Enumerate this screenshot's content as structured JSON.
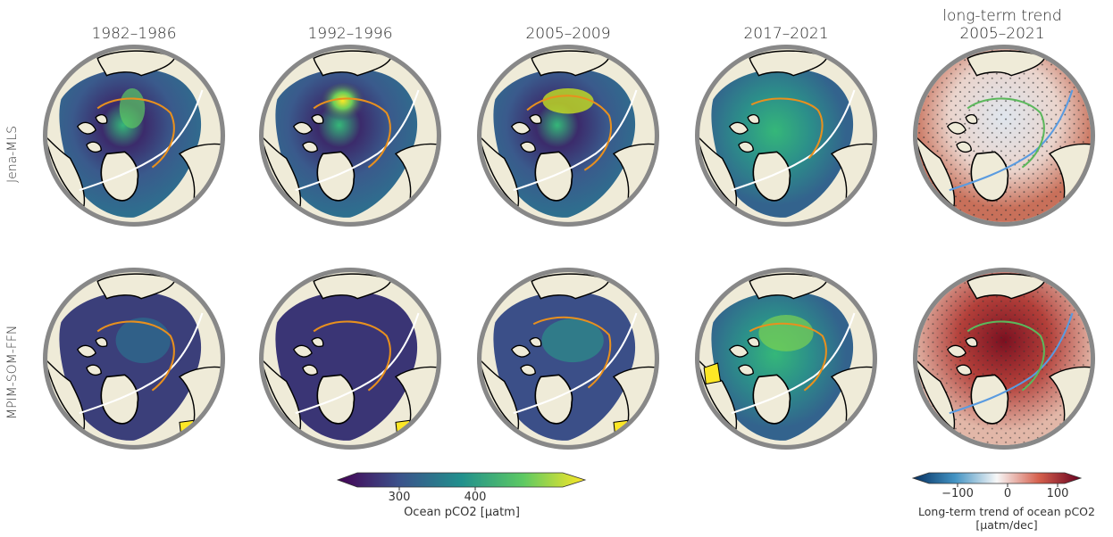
{
  "columns": [
    {
      "title": "1982–1986"
    },
    {
      "title": "1992–1996"
    },
    {
      "title": "2005–2009"
    },
    {
      "title": "2017–2021"
    },
    {
      "title_line1": "long-term trend",
      "title_line2": "2005–2021"
    }
  ],
  "rows": [
    {
      "label": "Jena-MLS"
    },
    {
      "label": "MPIM-SOM-FFN"
    }
  ],
  "colorbars": {
    "pco2": {
      "ticks": [
        "300",
        "400"
      ],
      "label": "Ocean pCO2 [µatm]",
      "colormap": "viridis",
      "extend": "both"
    },
    "trend": {
      "ticks": [
        "−100",
        "0",
        "100"
      ],
      "label_line1": "Long-term trend of ocean pCO2",
      "label_line2": "[µatm/dec]",
      "colormap": "RdBu_r",
      "extend": "both"
    }
  },
  "colors": {
    "land": "#efebd8",
    "ocean_low": "#3b2b6b",
    "ocean_mid": "#2c6f8e",
    "ocean_high": "#35b779",
    "yellow": "#fde725",
    "ice_edge_orange": "#e8901e",
    "ice_edge_white": "#ffffff",
    "trend_green": "#5cb85c",
    "trend_blue": "#5a9be0",
    "frame_grey": "#8a8a8a"
  }
}
